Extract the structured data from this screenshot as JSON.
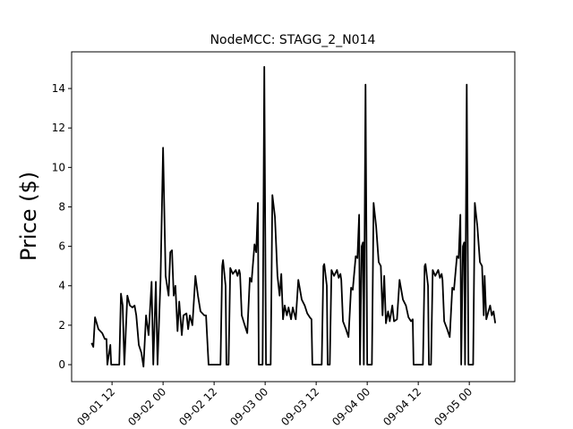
{
  "chart_data": {
    "type": "line",
    "title": "NodeMCC: STAGG_2_N014",
    "y_label": "Price ($)",
    "color": "#000000",
    "x": [
      7.2,
      7.6,
      8.0,
      8.8,
      9.7,
      10.3,
      10.7,
      10.9,
      11.6,
      11.8,
      13.7,
      14.1,
      14.5,
      14.9,
      15.6,
      16.2,
      16.8,
      17.3,
      17.7,
      18.3,
      18.9,
      19.4,
      20.0,
      20.6,
      21.3,
      21.7,
      22.3,
      22.7,
      23.4,
      24.0,
      24.6,
      25.3,
      25.7,
      26.1,
      26.5,
      26.9,
      27.4,
      27.8,
      28.4,
      28.8,
      29.5,
      29.9,
      30.3,
      30.9,
      31.6,
      32.2,
      32.8,
      33.7,
      34.1,
      34.7,
      37.5,
      37.9,
      38.1,
      38.7,
      38.9,
      39.4,
      39.8,
      40.4,
      41.1,
      41.5,
      41.9,
      42.1,
      42.5,
      43.2,
      43.8,
      44.4,
      44.8,
      45.5,
      45.9,
      46.3,
      46.5,
      47.4,
      47.8,
      48.2,
      49.3,
      49.7,
      50.3,
      50.9,
      51.4,
      51.8,
      52.2,
      52.6,
      53.1,
      53.5,
      54.1,
      54.5,
      55.2,
      55.8,
      56.2,
      56.6,
      57.3,
      57.9,
      58.5,
      58.9,
      59.1,
      61.3,
      61.7,
      61.9,
      62.5,
      62.7,
      63.2,
      63.6,
      64.2,
      64.9,
      65.3,
      65.7,
      65.9,
      66.3,
      67.0,
      67.6,
      68.2,
      68.6,
      69.3,
      69.7,
      70.1,
      70.3,
      70.7,
      71.0,
      71.2,
      71.6,
      72.0,
      73.1,
      73.5,
      74.1,
      74.7,
      75.2,
      75.6,
      76.0,
      76.4,
      76.9,
      77.3,
      77.9,
      78.3,
      79.0,
      79.6,
      80.0,
      80.4,
      81.1,
      81.7,
      82.3,
      82.7,
      82.9,
      85.1,
      85.5,
      85.7,
      86.3,
      86.5,
      87.0,
      87.4,
      88.0,
      88.7,
      89.1,
      89.5,
      89.7,
      90.1,
      90.8,
      91.4,
      92.0,
      92.4,
      93.1,
      93.5,
      93.9,
      94.1,
      94.5,
      94.8,
      95.0,
      95.4,
      95.8,
      96.9,
      97.3,
      97.9,
      98.5,
      99.0,
      99.4,
      99.6,
      100.0,
      100.5,
      100.9,
      101.3,
      101.7,
      102.1
    ],
    "values": [
      1.1,
      0.9,
      2.4,
      1.8,
      1.6,
      1.3,
      1.3,
      0,
      1.0,
      0,
      0,
      3.6,
      3.0,
      0,
      3.5,
      3.0,
      2.9,
      3.0,
      2.5,
      1.0,
      0.6,
      -0.1,
      2.5,
      1.5,
      4.2,
      0,
      4.2,
      0,
      4.3,
      11.0,
      4.5,
      3.5,
      5.7,
      5.8,
      3.5,
      4.0,
      1.7,
      3.2,
      1.5,
      2.5,
      2.6,
      1.8,
      2.5,
      2.0,
      4.5,
      3.5,
      2.7,
      2.5,
      2.5,
      0,
      0,
      5.0,
      5.3,
      4.0,
      0,
      0,
      4.9,
      4.6,
      4.8,
      4.5,
      4.8,
      4.6,
      2.5,
      2.0,
      1.6,
      4.4,
      4.2,
      6.1,
      5.7,
      8.2,
      0,
      0,
      15.1,
      0,
      0,
      8.6,
      7.5,
      4.5,
      3.5,
      4.6,
      2.3,
      3.0,
      2.5,
      2.9,
      2.3,
      2.9,
      2.3,
      4.3,
      3.8,
      3.3,
      3.0,
      2.6,
      2.4,
      2.3,
      0,
      0,
      5.0,
      5.1,
      4.0,
      0,
      0,
      4.8,
      4.5,
      4.8,
      4.4,
      4.6,
      4.3,
      2.2,
      1.8,
      1.4,
      3.9,
      3.8,
      5.5,
      5.4,
      7.6,
      0,
      6.0,
      6.2,
      0,
      14.2,
      0,
      0,
      8.2,
      7.0,
      5.2,
      5.0,
      2.5,
      4.5,
      2.1,
      2.7,
      2.2,
      3.0,
      2.2,
      2.3,
      4.3,
      3.8,
      3.3,
      3.0,
      2.4,
      2.2,
      2.3,
      0,
      0,
      5.0,
      5.1,
      4.0,
      0,
      0,
      4.8,
      4.5,
      4.8,
      4.4,
      4.6,
      4.3,
      2.2,
      1.8,
      1.4,
      3.9,
      3.8,
      5.5,
      5.4,
      7.6,
      0,
      6.0,
      6.2,
      0,
      14.2,
      0,
      0,
      8.2,
      7.0,
      5.2,
      5.0,
      2.5,
      4.5,
      2.3,
      2.7,
      3.0,
      2.5,
      2.7,
      2.1
    ],
    "xlim": [
      2.5,
      106.7
    ],
    "ylim": [
      -0.86,
      15.86
    ],
    "xticks": [
      {
        "value": 12,
        "label": "09-01 12"
      },
      {
        "value": 24,
        "label": "09-02 00"
      },
      {
        "value": 36,
        "label": "09-02 12"
      },
      {
        "value": 48,
        "label": "09-03 00"
      },
      {
        "value": 60,
        "label": "09-03 12"
      },
      {
        "value": 72,
        "label": "09-04 00"
      },
      {
        "value": 84,
        "label": "09-04 12"
      },
      {
        "value": 96,
        "label": "09-05 00"
      }
    ],
    "yticks": [
      0,
      2,
      4,
      6,
      8,
      10,
      12,
      14
    ]
  }
}
